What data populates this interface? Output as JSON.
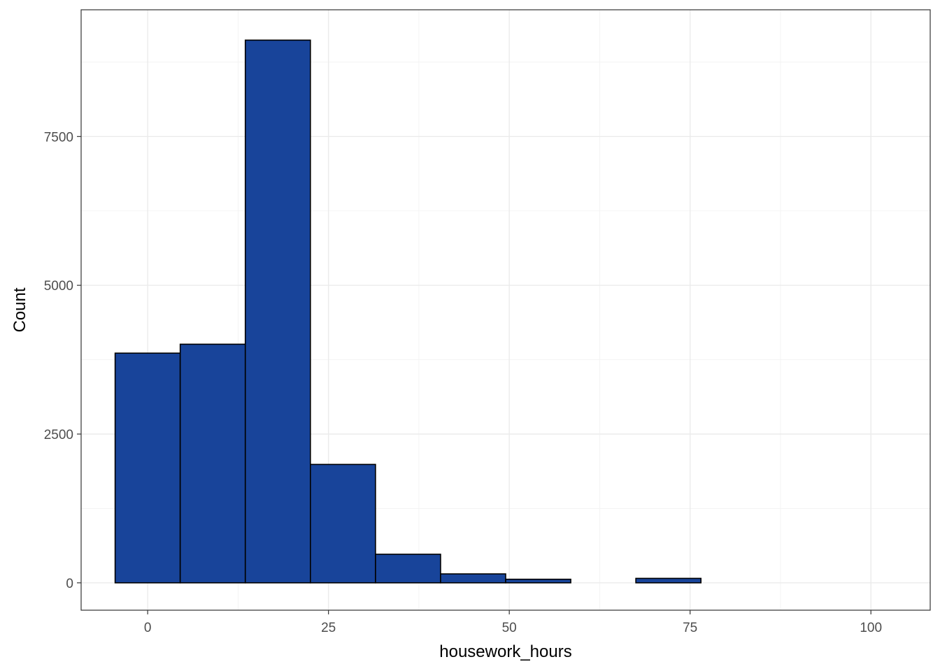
{
  "chart_data": {
    "type": "bar",
    "subtype": "histogram",
    "xlabel": "housework_hours",
    "ylabel": "Count",
    "xlim": [
      -9.2,
      108.2
    ],
    "ylim": [
      -460,
      9630
    ],
    "x_ticks": [
      0,
      25,
      50,
      75,
      100
    ],
    "y_ticks": [
      0,
      2500,
      5000,
      7500
    ],
    "y_tick_labels": [
      "0",
      "2500",
      "5000",
      "7500"
    ],
    "grid": true,
    "bar_color": "#18449a",
    "bin_width": 9,
    "bins": [
      {
        "x0": -4.5,
        "x1": 4.5,
        "count": 3860
      },
      {
        "x0": 4.5,
        "x1": 13.5,
        "count": 4010
      },
      {
        "x0": 13.5,
        "x1": 22.5,
        "count": 9120
      },
      {
        "x0": 22.5,
        "x1": 31.5,
        "count": 1990
      },
      {
        "x0": 31.5,
        "x1": 40.5,
        "count": 480
      },
      {
        "x0": 40.5,
        "x1": 49.5,
        "count": 150
      },
      {
        "x0": 49.5,
        "x1": 58.5,
        "count": 60
      },
      {
        "x0": 58.5,
        "x1": 67.5,
        "count": 0
      },
      {
        "x0": 67.5,
        "x1": 76.5,
        "count": 75
      },
      {
        "x0": 76.5,
        "x1": 85.5,
        "count": 0
      },
      {
        "x0": 85.5,
        "x1": 94.5,
        "count": 0
      },
      {
        "x0": 94.5,
        "x1": 103.5,
        "count": 0
      }
    ]
  }
}
